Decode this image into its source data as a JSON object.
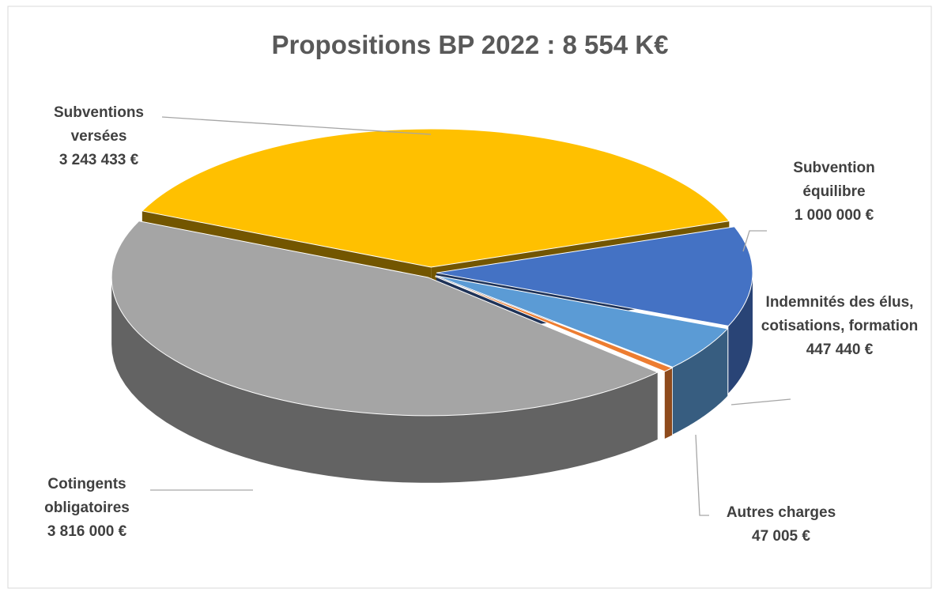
{
  "chart_data": {
    "type": "pie",
    "title": "Propositions BP 2022 : 8 554 K€",
    "categories": [
      "Subventions versées",
      "Subvention équilibre",
      "Indemnités des élus, cotisations, formation",
      "Autres charges",
      "Cotingents obligatoires"
    ],
    "values": [
      3243433,
      1000000,
      447440,
      47005,
      3816000
    ],
    "value_labels": [
      "3 243 433 €",
      "1 000 000 €",
      "447 440 €",
      "47 005 €",
      "3 816 000 €"
    ],
    "colors": [
      "#FFC000",
      "#4472C4",
      "#5B9BD5",
      "#ED7D31",
      "#A5A5A5"
    ]
  }
}
